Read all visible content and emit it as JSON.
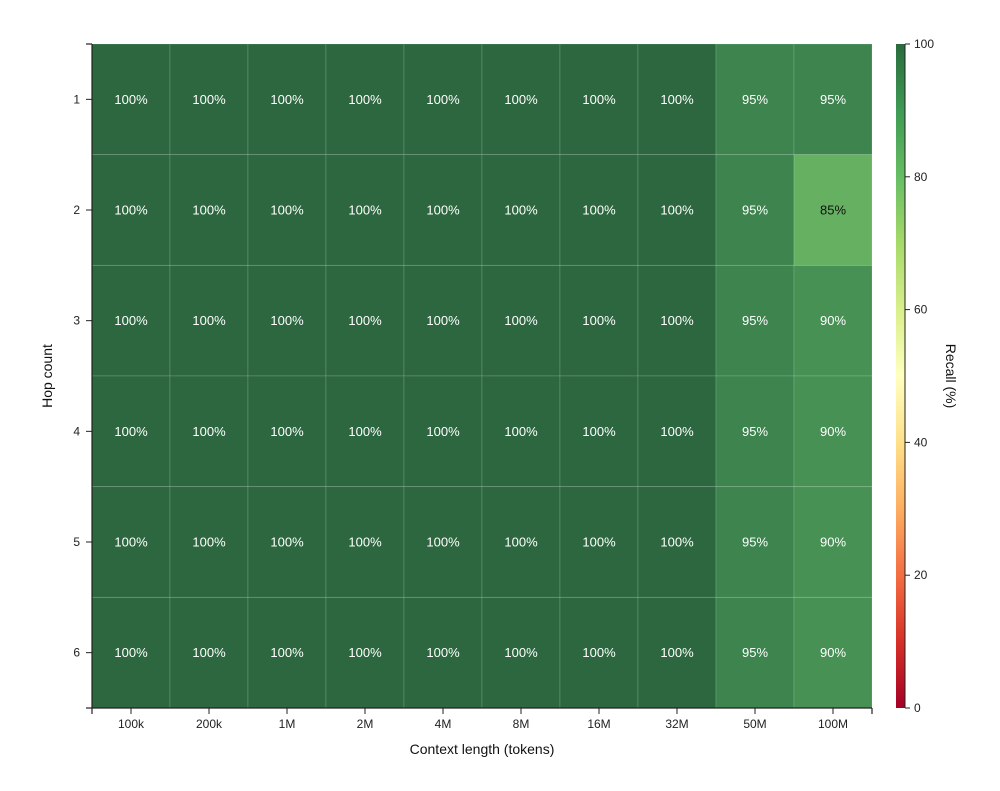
{
  "chart_data": {
    "type": "heatmap",
    "title": "",
    "xlabel": "Context length (tokens)",
    "ylabel": "Hop count",
    "x_categories": [
      "100k",
      "200k",
      "1M",
      "2M",
      "4M",
      "8M",
      "16M",
      "32M",
      "50M",
      "100M"
    ],
    "y_categories": [
      "1",
      "2",
      "3",
      "4",
      "5",
      "6"
    ],
    "values": [
      [
        100,
        100,
        100,
        100,
        100,
        100,
        100,
        100,
        95,
        95
      ],
      [
        100,
        100,
        100,
        100,
        100,
        100,
        100,
        100,
        95,
        85
      ],
      [
        100,
        100,
        100,
        100,
        100,
        100,
        100,
        100,
        95,
        90
      ],
      [
        100,
        100,
        100,
        100,
        100,
        100,
        100,
        100,
        95,
        90
      ],
      [
        100,
        100,
        100,
        100,
        100,
        100,
        100,
        100,
        95,
        90
      ],
      [
        100,
        100,
        100,
        100,
        100,
        100,
        100,
        100,
        95,
        90
      ]
    ],
    "value_suffix": "%",
    "colorbar": {
      "label": "Recall (%)",
      "range": [
        0,
        100
      ],
      "ticks": [
        0,
        20,
        40,
        60,
        80,
        100
      ],
      "placement": "right",
      "scale": "red-yellow-green"
    },
    "grid": true
  }
}
